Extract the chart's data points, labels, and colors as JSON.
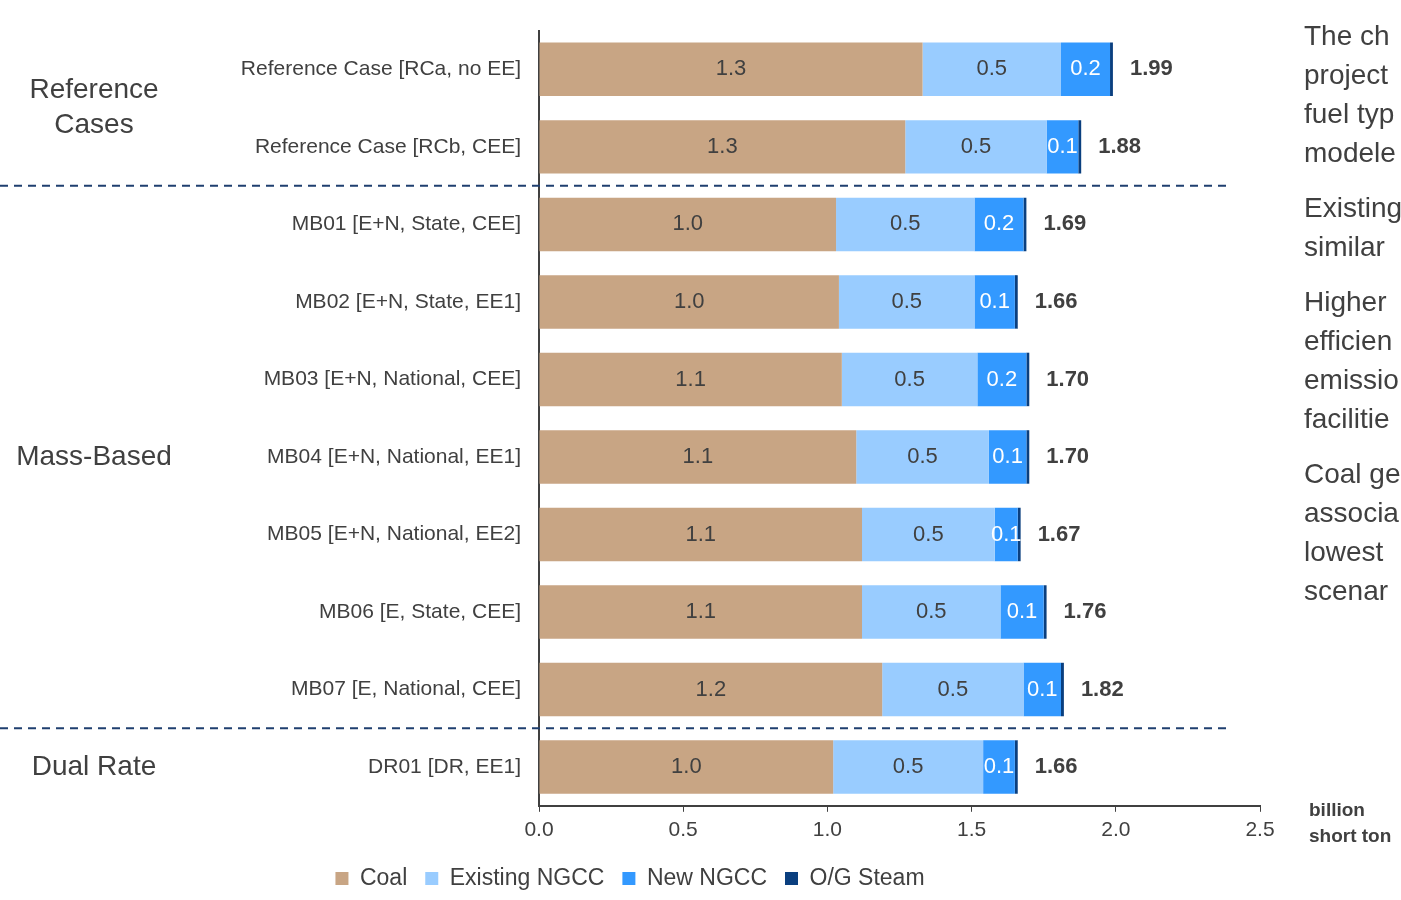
{
  "chart_data": {
    "type": "bar",
    "orientation": "horizontal",
    "stacked": true,
    "categories": [
      "Reference Case [RCa, no EE]",
      "Reference Case [RCb, CEE]",
      "MB01 [E+N, State, CEE]",
      "MB02 [E+N, State, EE1]",
      "MB03 [E+N, National, CEE]",
      "MB04 [E+N, National, EE1]",
      "MB05 [E+N, National, EE2]",
      "MB06 [E, State, CEE]",
      "MB07 [E, National, CEE]",
      "DR01 [DR, EE1]"
    ],
    "series": [
      {
        "name": "Coal",
        "color": "#c8a584",
        "values": [
          1.33,
          1.27,
          1.03,
          1.04,
          1.05,
          1.1,
          1.12,
          1.12,
          1.19,
          1.02
        ],
        "value_labels": [
          "1.3",
          "1.3",
          "1.0",
          "1.0",
          "1.1",
          "1.1",
          "1.1",
          "1.1",
          "1.2",
          "1.0"
        ]
      },
      {
        "name": "Existing NGCC",
        "color": "#99ccff",
        "values": [
          0.48,
          0.49,
          0.48,
          0.47,
          0.47,
          0.46,
          0.46,
          0.48,
          0.49,
          0.52
        ],
        "value_labels": [
          "0.5",
          "0.5",
          "0.5",
          "0.5",
          "0.5",
          "0.5",
          "0.5",
          "0.5",
          "0.5",
          "0.5"
        ]
      },
      {
        "name": "New NGCC",
        "color": "#3399ff",
        "values": [
          0.17,
          0.11,
          0.17,
          0.14,
          0.17,
          0.13,
          0.08,
          0.15,
          0.13,
          0.11
        ],
        "value_labels": [
          "0.2",
          "0.1",
          "0.2",
          "0.1",
          "0.2",
          "0.1",
          "0.1",
          "0.1",
          "0.1",
          "0.1"
        ]
      },
      {
        "name": "O/G Steam",
        "color": "#0a3f7f",
        "values": [
          0.01,
          0.01,
          0.01,
          0.01,
          0.01,
          0.01,
          0.01,
          0.01,
          0.01,
          0.01
        ]
      }
    ],
    "totals": [
      "1.99",
      "1.88",
      "1.69",
      "1.66",
      "1.70",
      "1.70",
      "1.67",
      "1.76",
      "1.82",
      "1.66"
    ],
    "xlim": [
      0,
      2.5
    ],
    "xticks": [
      {
        "value": 0,
        "label": "0.0"
      },
      0.5,
      {
        "value": 1,
        "label": "1.0"
      },
      1.5,
      {
        "value": 2,
        "label": "2.0"
      },
      2.5
    ],
    "xlabel": "billion\nshort ton",
    "grid": false,
    "legend": "bottom",
    "annotations": [
      "Reference\nCases",
      "Mass-Based",
      "Dual Rate",
      "The ch\nproject\nfuel typ\nmodele",
      "Existing\nsimilar",
      "Higher\nefficien\nemissio\nfacilitie",
      "Coal ge\nassocia\nlowest\nscenar"
    ]
  }
}
